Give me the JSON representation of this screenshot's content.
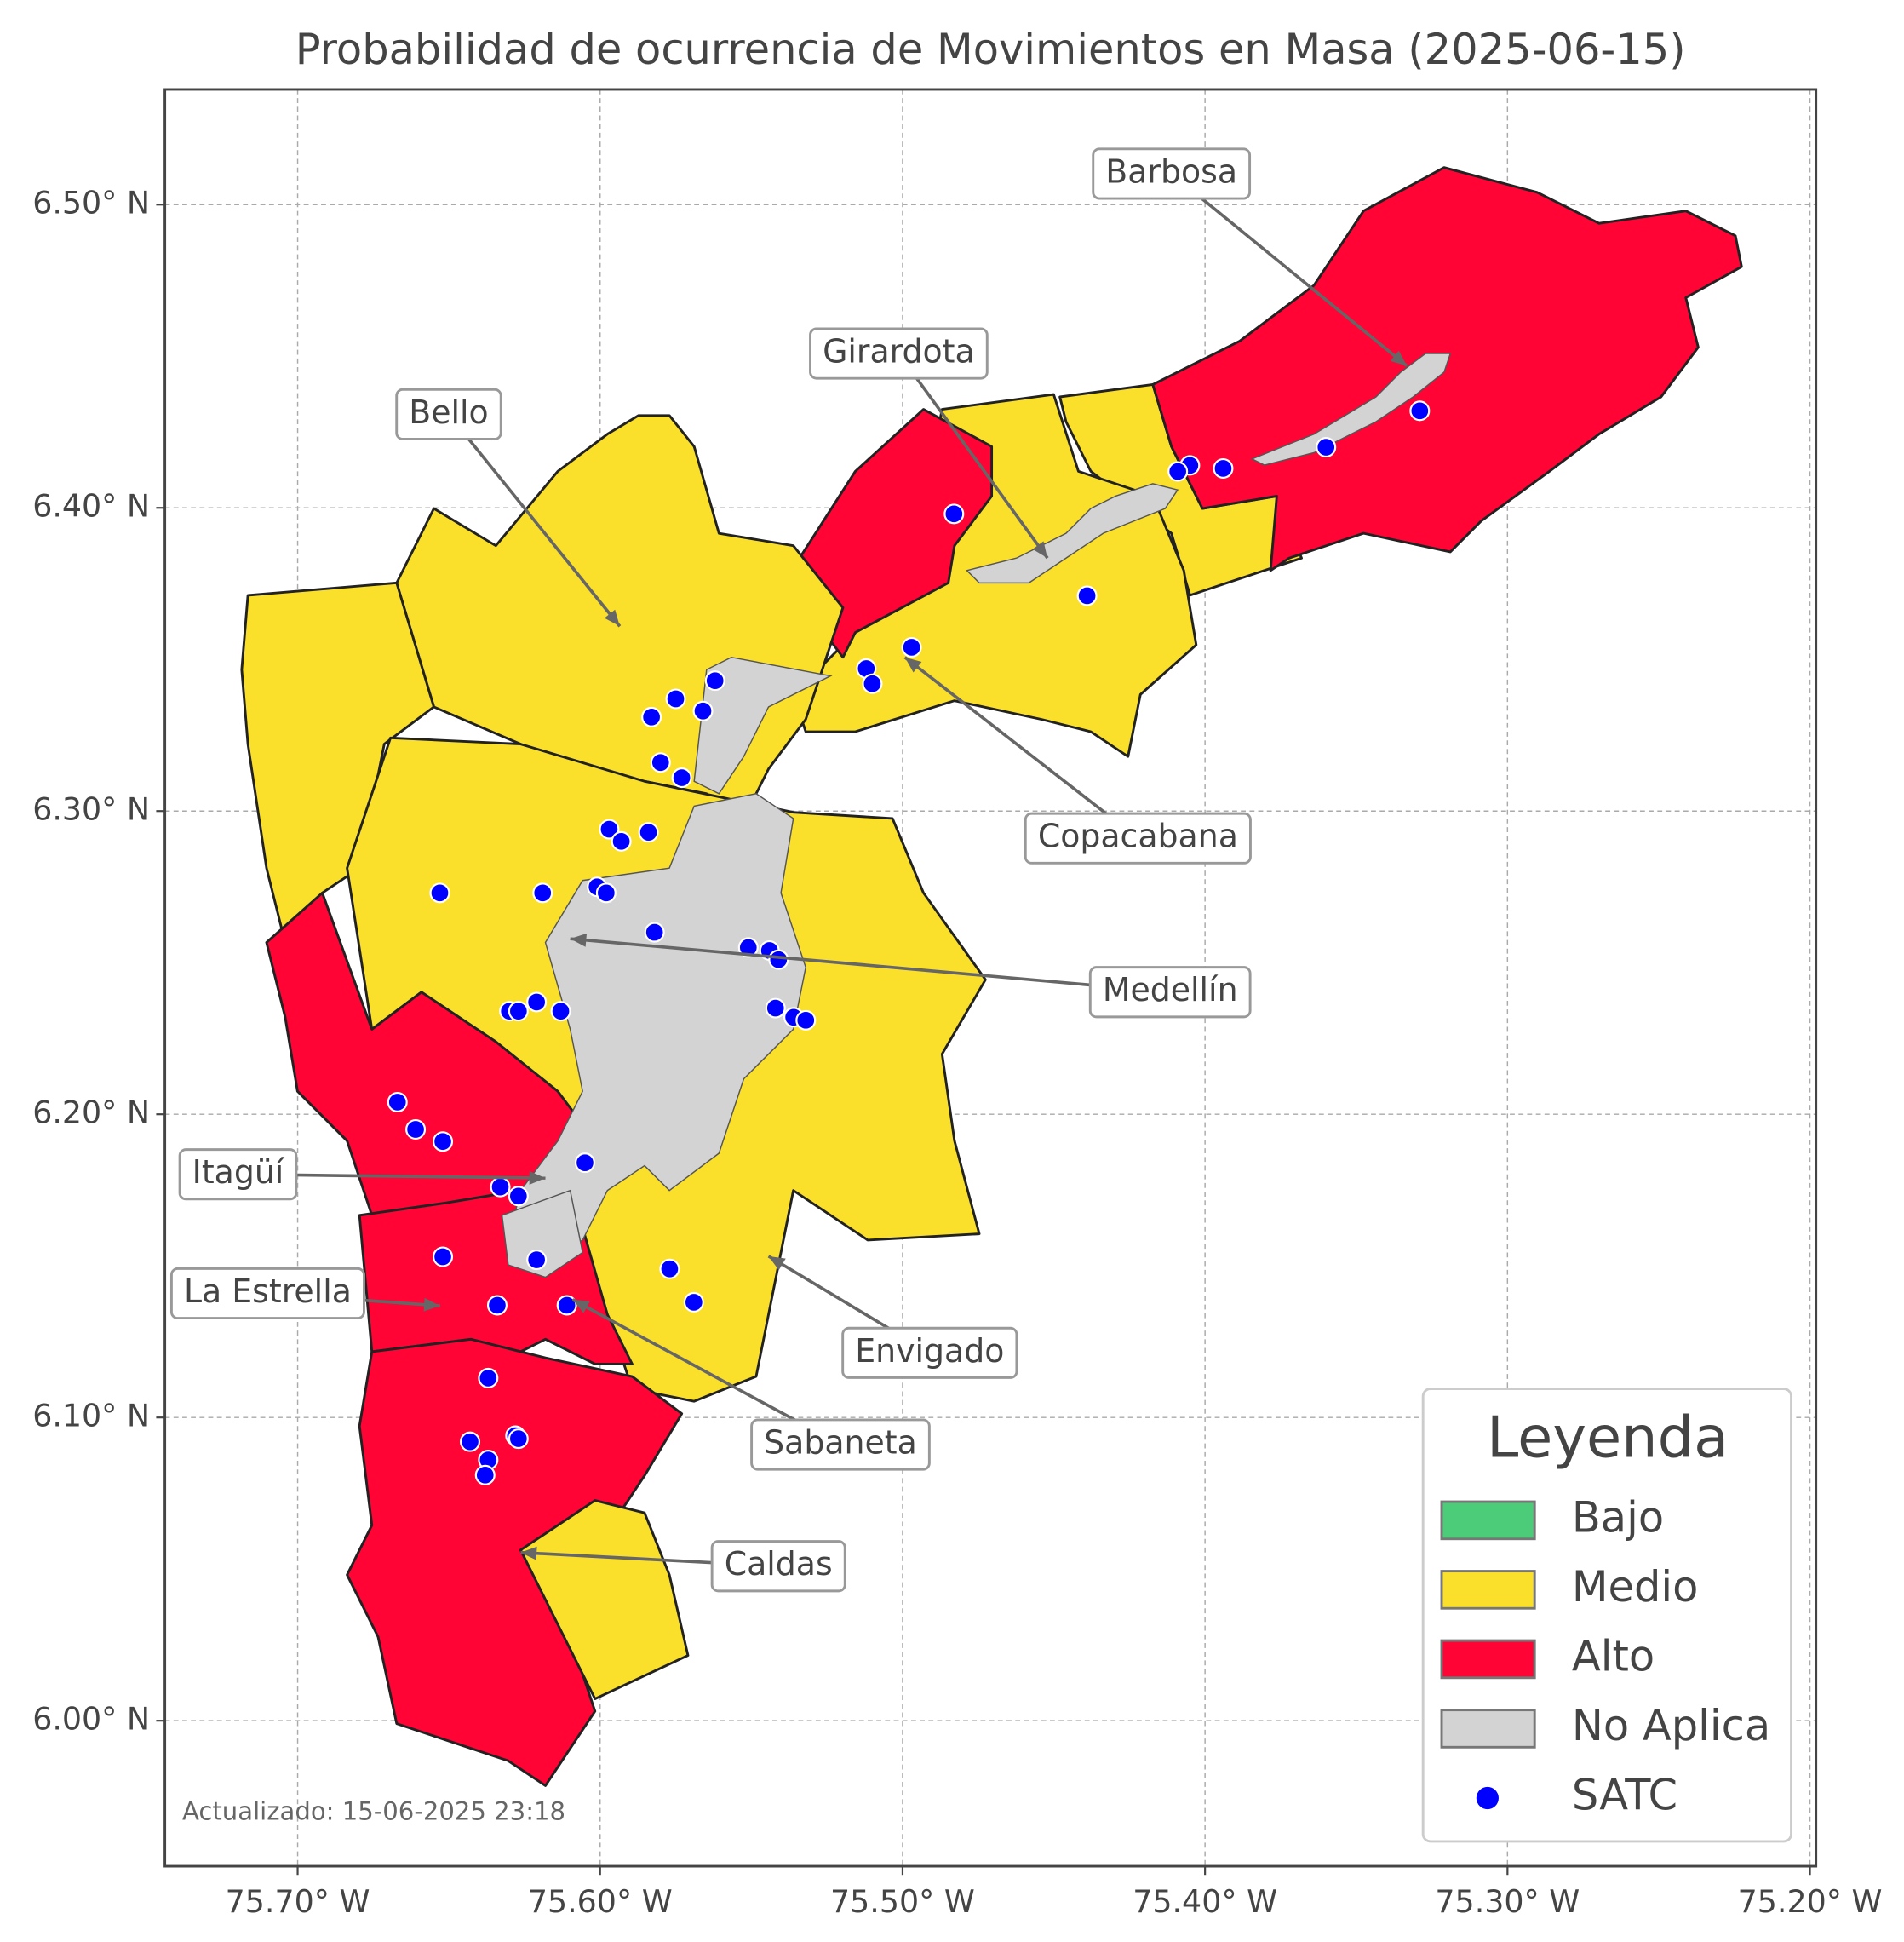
{
  "title": "Probabilidad de ocurrencia de Movimientos en Masa (2025-06-15)",
  "grid": true,
  "xaxis": {
    "lim": [
      -75.7439,
      -75.198
    ],
    "ticks": [
      {
        "value": -75.7,
        "label": "75.70° W"
      },
      {
        "value": -75.6,
        "label": "75.60° W"
      },
      {
        "value": -75.5,
        "label": "75.50° W"
      },
      {
        "value": -75.4,
        "label": "75.40° W"
      },
      {
        "value": -75.3,
        "label": "75.30° W"
      },
      {
        "value": -75.2,
        "label": "75.20° W"
      }
    ]
  },
  "yaxis": {
    "lim": [
      5.952,
      6.538
    ],
    "ticks": [
      {
        "value": 6.0,
        "label": "6.00° N"
      },
      {
        "value": 6.1,
        "label": "6.10° N"
      },
      {
        "value": 6.2,
        "label": "6.20° N"
      },
      {
        "value": 6.3,
        "label": "6.30° N"
      },
      {
        "value": 6.4,
        "label": "6.40° N"
      },
      {
        "value": 6.5,
        "label": "6.50° N"
      }
    ]
  },
  "stations": {
    "name": "SATC",
    "color": "#0000ff",
    "lon": [
      -75.329,
      -75.36,
      -75.394,
      -75.405,
      -75.409,
      -75.483,
      -75.439,
      -75.497,
      -75.512,
      -75.51,
      -75.562,
      -75.575,
      -75.583,
      -75.566,
      -75.58,
      -75.573,
      -75.597,
      -75.593,
      -75.584,
      -75.653,
      -75.619,
      -75.601,
      -75.598,
      -75.582,
      -75.551,
      -75.544,
      -75.541,
      -75.542,
      -75.536,
      -75.532,
      -75.621,
      -75.63,
      -75.627,
      -75.613,
      -75.667,
      -75.661,
      -75.652,
      -75.605,
      -75.633,
      -75.627,
      -75.652,
      -75.621,
      -75.577,
      -75.569,
      -75.634,
      -75.611,
      -75.637,
      -75.643,
      -75.628,
      -75.627,
      -75.637,
      -75.638
    ],
    "lat": [
      6.432,
      6.42,
      6.413,
      6.414,
      6.412,
      6.398,
      6.371,
      6.354,
      6.347,
      6.342,
      6.343,
      6.337,
      6.331,
      6.333,
      6.316,
      6.311,
      6.294,
      6.29,
      6.293,
      6.273,
      6.273,
      6.275,
      6.273,
      6.26,
      6.255,
      6.254,
      6.251,
      6.235,
      6.232,
      6.231,
      6.237,
      6.234,
      6.234,
      6.234,
      6.204,
      6.195,
      6.191,
      6.184,
      6.176,
      6.173,
      6.153,
      6.152,
      6.149,
      6.138,
      6.137,
      6.137,
      6.113,
      6.092,
      6.094,
      6.093,
      6.086,
      6.081
    ]
  },
  "annotations": [
    "Barbosa",
    "Girardota",
    "Bello",
    "Copacabana",
    "Medellín",
    "Itagüí",
    "La Estrella",
    "Envigado",
    "Sabaneta",
    "Caldas"
  ],
  "legend": {
    "title": "Leyenda",
    "items": [
      {
        "label": "Bajo",
        "color": "#4ccc78"
      },
      {
        "label": "Medio",
        "color": "#fbe02b"
      },
      {
        "label": "Alto",
        "color": "#ff0435"
      },
      {
        "label": "No Aplica",
        "color": "#d3d3d3"
      }
    ]
  },
  "footnote": "Actualizado: 15-06-2025 23:18"
}
